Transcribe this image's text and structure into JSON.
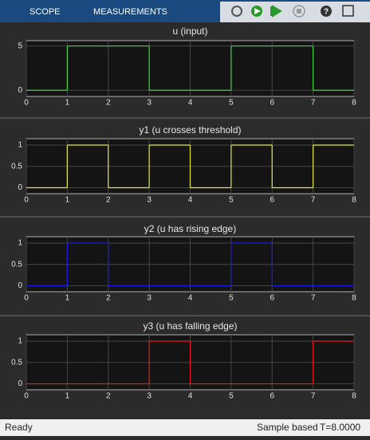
{
  "toolbar": {
    "tabs": [
      "SCOPE",
      "MEASUREMENTS"
    ]
  },
  "status": {
    "left": "Ready",
    "mode": "Sample based",
    "time": "T=8.0000"
  },
  "chart_data": [
    {
      "type": "step",
      "title": "u (input)",
      "x": [
        0,
        1,
        2,
        3,
        4,
        5,
        6,
        7
      ],
      "values": [
        0,
        5,
        5,
        0,
        0,
        5,
        5,
        0
      ],
      "color": "#3fd23f",
      "xlim": [
        0,
        8
      ],
      "ylim": [
        -0.7,
        5.6
      ],
      "xticks": [
        0,
        1,
        2,
        3,
        4,
        5,
        6,
        7,
        8
      ],
      "yticks": [
        0,
        5
      ],
      "grid": true
    },
    {
      "type": "step",
      "title": "y1 (u crosses threshold)",
      "x": [
        0,
        1,
        2,
        3,
        4,
        5,
        6,
        7
      ],
      "values": [
        0,
        1,
        0,
        1,
        0,
        1,
        0,
        1
      ],
      "color": "#e6e63c",
      "xlim": [
        0,
        8
      ],
      "ylim": [
        -0.14,
        1.15
      ],
      "xticks": [
        0,
        1,
        2,
        3,
        4,
        5,
        6,
        7,
        8
      ],
      "yticks": [
        0,
        0.5,
        1
      ],
      "grid": true
    },
    {
      "type": "step",
      "title": "y2 (u has rising edge)",
      "x": [
        0,
        1,
        2,
        3,
        4,
        5,
        6,
        7
      ],
      "values": [
        0,
        1,
        0,
        0,
        0,
        1,
        0,
        0
      ],
      "color": "#1a1ae0",
      "xlim": [
        0,
        8
      ],
      "ylim": [
        -0.14,
        1.15
      ],
      "xticks": [
        0,
        1,
        2,
        3,
        4,
        5,
        6,
        7,
        8
      ],
      "yticks": [
        0,
        0.5,
        1
      ],
      "grid": true
    },
    {
      "type": "step",
      "title": "y3 (u has falling edge)",
      "x": [
        0,
        1,
        2,
        3,
        4,
        5,
        6,
        7
      ],
      "values": [
        0,
        0,
        0,
        1,
        0,
        0,
        0,
        1
      ],
      "color": "#e01c1c",
      "xlim": [
        0,
        8
      ],
      "ylim": [
        -0.14,
        1.15
      ],
      "xticks": [
        0,
        1,
        2,
        3,
        4,
        5,
        6,
        7,
        8
      ],
      "yticks": [
        0,
        0.5,
        1
      ],
      "grid": true
    }
  ]
}
